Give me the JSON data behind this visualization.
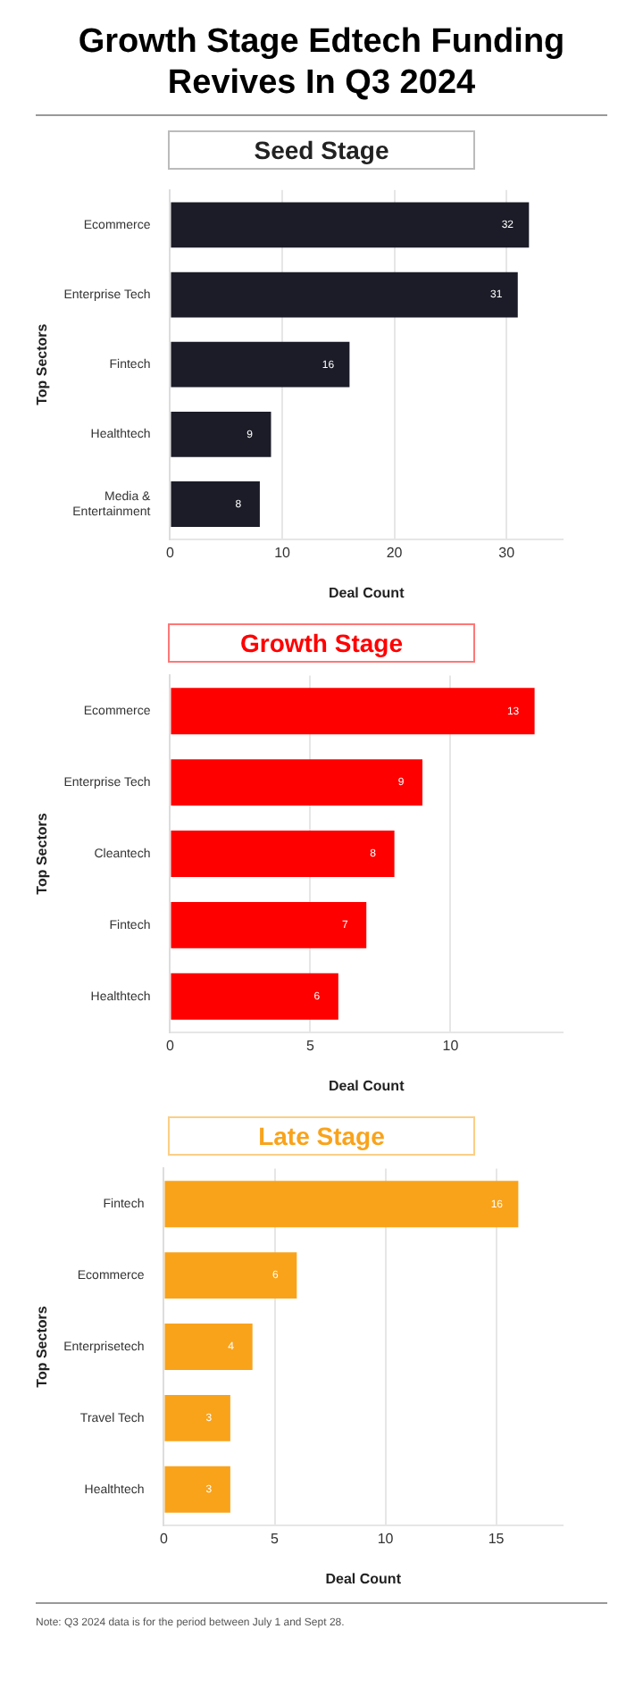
{
  "chart_data": [
    {
      "type": "bar",
      "orientation": "horizontal",
      "title": "Growth Stage Edtech Funding Revives In Q3 2024",
      "subtitle": "Seed Stage",
      "xlabel": "Deal Count",
      "ylabel": "Top Sectors",
      "categories": [
        "Ecommerce",
        "Enterprise Tech",
        "Fintech",
        "Healthtech",
        "Media & Entertainment"
      ],
      "values": [
        32,
        31,
        16,
        9,
        8
      ],
      "color": "#1b1c27",
      "xlim": [
        0,
        35
      ],
      "xticks": [
        0,
        10,
        20,
        30
      ],
      "grid": "x",
      "data_labels": true
    },
    {
      "type": "bar",
      "orientation": "horizontal",
      "title": "Growth Stage",
      "xlabel": "Deal Count",
      "ylabel": "Top Sectors",
      "categories": [
        "Ecommerce",
        "Enterprise Tech",
        "Cleantech",
        "Fintech",
        "Healthtech"
      ],
      "values": [
        13,
        9,
        8,
        7,
        6
      ],
      "color": "#fe0000",
      "xlim": [
        0,
        14
      ],
      "xticks": [
        0,
        5,
        10
      ],
      "grid": "x",
      "data_labels": true
    },
    {
      "type": "bar",
      "orientation": "horizontal",
      "title": "Late Stage",
      "xlabel": "Deal Count",
      "ylabel": "Top Sectors",
      "categories": [
        "Fintech",
        "Ecommerce",
        "Enterprisetech",
        "Travel Tech",
        "Healthtech"
      ],
      "values": [
        16,
        6,
        4,
        3,
        3
      ],
      "color": "#f9a31b",
      "xlim": [
        0,
        18
      ],
      "xticks": [
        0,
        5,
        10,
        15
      ],
      "grid": "x",
      "data_labels": true,
      "annotations": [
        "Note: Q3 2024 data is for the period between July 1 and Sept 28."
      ]
    }
  ]
}
